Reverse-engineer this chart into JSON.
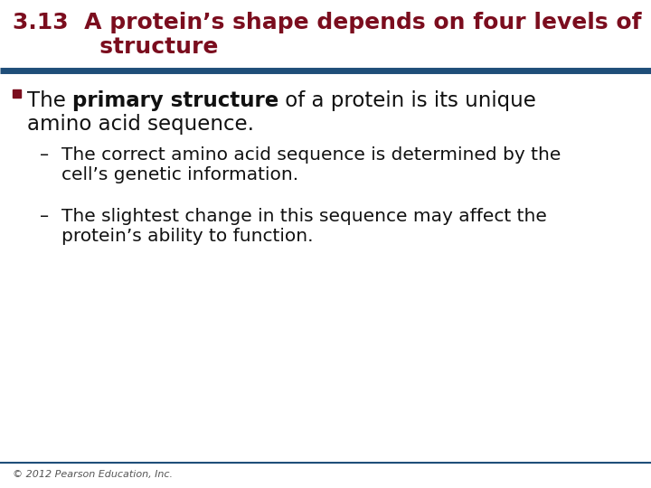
{
  "title_line1": "3.13  A protein’s shape depends on four levels of",
  "title_line2": "           structure",
  "title_color": "#7B0D1E",
  "title_fontsize": 18,
  "sep_color": "#1F4E79",
  "bullet_color": "#7B0D1E",
  "bullet_fontsize": 16.5,
  "sub_fontsize": 14.5,
  "sub_text_color": "#111111",
  "footer_text": "© 2012 Pearson Education, Inc.",
  "footer_fontsize": 8,
  "footer_color": "#555555",
  "bg_color": "#FFFFFF"
}
